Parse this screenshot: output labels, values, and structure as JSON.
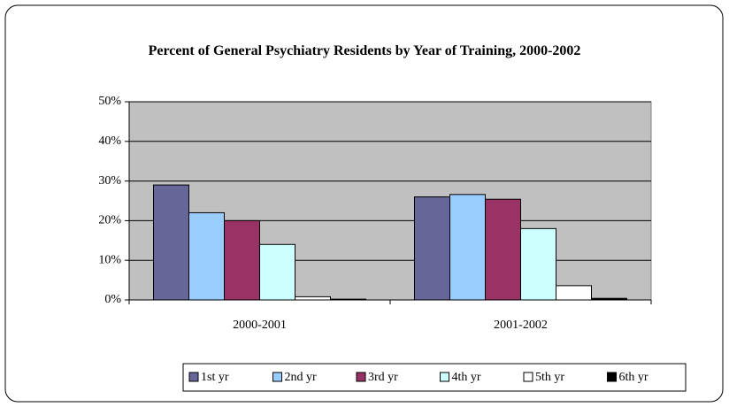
{
  "chart_data": {
    "type": "bar",
    "title": "Percent of General Psychiatry Residents by Year of Training, 2000-2002",
    "categories": [
      "2000-2001",
      "2001-2002"
    ],
    "series": [
      {
        "name": "1st yr",
        "color": "#666699",
        "values": [
          29,
          26
        ]
      },
      {
        "name": "2nd yr",
        "color": "#99ccff",
        "values": [
          22,
          26.6
        ]
      },
      {
        "name": "3rd yr",
        "color": "#993366",
        "values": [
          20,
          25.4
        ]
      },
      {
        "name": "4th yr",
        "color": "#ccffff",
        "values": [
          14,
          18
        ]
      },
      {
        "name": "5th yr",
        "color": "#ffffff",
        "values": [
          0.8,
          3.6
        ]
      },
      {
        "name": "6th yr",
        "color": "#000000",
        "values": [
          0.2,
          0.4
        ]
      }
    ],
    "ylim": [
      0,
      50
    ],
    "yticks": [
      {
        "value": 0,
        "label": "0%"
      },
      {
        "value": 10,
        "label": "10%"
      },
      {
        "value": 20,
        "label": "20%"
      },
      {
        "value": 30,
        "label": "30%"
      },
      {
        "value": 40,
        "label": "40%"
      },
      {
        "value": 50,
        "label": "50%"
      }
    ],
    "grid": true,
    "legend": "bottom",
    "plot_background": "#c0c0c0"
  }
}
